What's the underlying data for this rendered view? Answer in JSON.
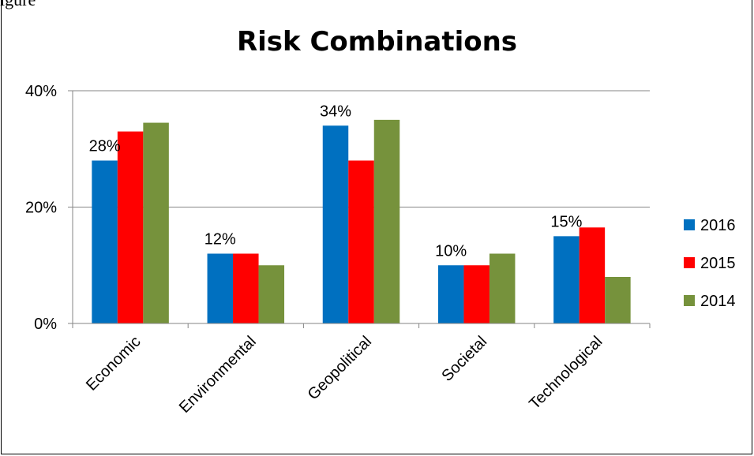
{
  "corner_text": "igure",
  "chart_data": {
    "type": "bar",
    "title": "Risk Combinations",
    "xlabel": "",
    "ylabel": "",
    "ylim": [
      0,
      0.4
    ],
    "y_ticks": [
      {
        "value": 0,
        "label": "0%"
      },
      {
        "value": 0.2,
        "label": "20%"
      },
      {
        "value": 0.4,
        "label": "40%"
      }
    ],
    "grid": true,
    "legend_position": "right",
    "categories": [
      "Economic",
      "Environmental",
      "Geopolitical",
      "Societal",
      "Technological"
    ],
    "series": [
      {
        "name": "2016",
        "color": "#0070C0",
        "values": [
          0.28,
          0.12,
          0.34,
          0.1,
          0.15
        ]
      },
      {
        "name": "2015",
        "color": "#FF0000",
        "values": [
          0.33,
          0.12,
          0.28,
          0.1,
          0.165
        ]
      },
      {
        "name": "2014",
        "color": "#76923C",
        "values": [
          0.345,
          0.1,
          0.35,
          0.12,
          0.08
        ]
      }
    ],
    "data_labels": [
      {
        "series": 0,
        "category": 0,
        "text": "28%"
      },
      {
        "series": 0,
        "category": 1,
        "text": "12%"
      },
      {
        "series": 0,
        "category": 2,
        "text": "34%"
      },
      {
        "series": 0,
        "category": 3,
        "text": "10%"
      },
      {
        "series": 0,
        "category": 4,
        "text": "15%"
      }
    ]
  }
}
